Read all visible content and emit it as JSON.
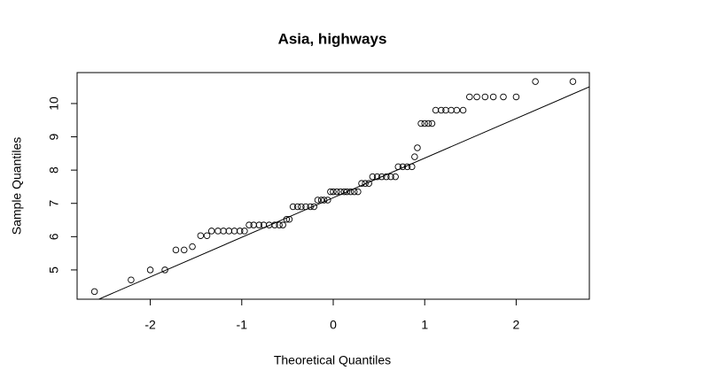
{
  "chart_data": {
    "type": "scatter",
    "title": "Asia, highways",
    "xlabel": "Theoretical Quantiles",
    "ylabel": "Sample Quantiles",
    "x": [
      -2.61,
      -2.21,
      -2.0,
      -1.84,
      -1.72,
      -1.63,
      -1.54,
      -1.45,
      -1.38,
      -1.33,
      -1.26,
      -1.2,
      -1.14,
      -1.08,
      -1.02,
      -0.97,
      -0.92,
      -0.87,
      -0.81,
      -0.76,
      -0.7,
      -0.64,
      -0.59,
      -0.55,
      -0.51,
      -0.48,
      -0.44,
      -0.39,
      -0.35,
      -0.3,
      -0.25,
      -0.21,
      -0.17,
      -0.13,
      -0.1,
      -0.06,
      -0.03,
      0.0,
      0.04,
      0.08,
      0.12,
      0.15,
      0.19,
      0.23,
      0.27,
      0.31,
      0.35,
      0.39,
      0.43,
      0.48,
      0.53,
      0.58,
      0.63,
      0.68,
      0.71,
      0.76,
      0.81,
      0.86,
      0.89,
      0.92,
      0.96,
      1.0,
      1.04,
      1.08,
      1.12,
      1.18,
      1.23,
      1.29,
      1.35,
      1.42,
      1.49,
      1.57,
      1.66,
      1.75,
      1.86,
      2.0,
      2.21,
      2.62
    ],
    "values": [
      4.35,
      4.7,
      5.0,
      5.0,
      5.6,
      5.6,
      5.7,
      6.03,
      6.03,
      6.17,
      6.17,
      6.17,
      6.17,
      6.17,
      6.17,
      6.17,
      6.35,
      6.35,
      6.35,
      6.35,
      6.35,
      6.35,
      6.35,
      6.35,
      6.52,
      6.52,
      6.9,
      6.9,
      6.9,
      6.9,
      6.9,
      6.9,
      7.1,
      7.1,
      7.1,
      7.1,
      7.35,
      7.35,
      7.35,
      7.35,
      7.35,
      7.35,
      7.35,
      7.35,
      7.35,
      7.6,
      7.6,
      7.6,
      7.8,
      7.8,
      7.8,
      7.8,
      7.8,
      7.8,
      8.1,
      8.1,
      8.1,
      8.1,
      8.4,
      8.67,
      9.4,
      9.4,
      9.4,
      9.4,
      9.8,
      9.8,
      9.8,
      9.8,
      9.8,
      9.8,
      10.2,
      10.2,
      10.2,
      10.2,
      10.2,
      10.2,
      10.66,
      10.66
    ],
    "qq_line": {
      "intercept": 7.17,
      "slope": 1.19
    },
    "xlim": [
      -2.8,
      2.8
    ],
    "ylim": [
      4.12,
      10.93
    ],
    "xticks": [
      -2,
      -1,
      0,
      1,
      2
    ],
    "yticks": [
      5,
      6,
      7,
      8,
      9,
      10
    ]
  }
}
